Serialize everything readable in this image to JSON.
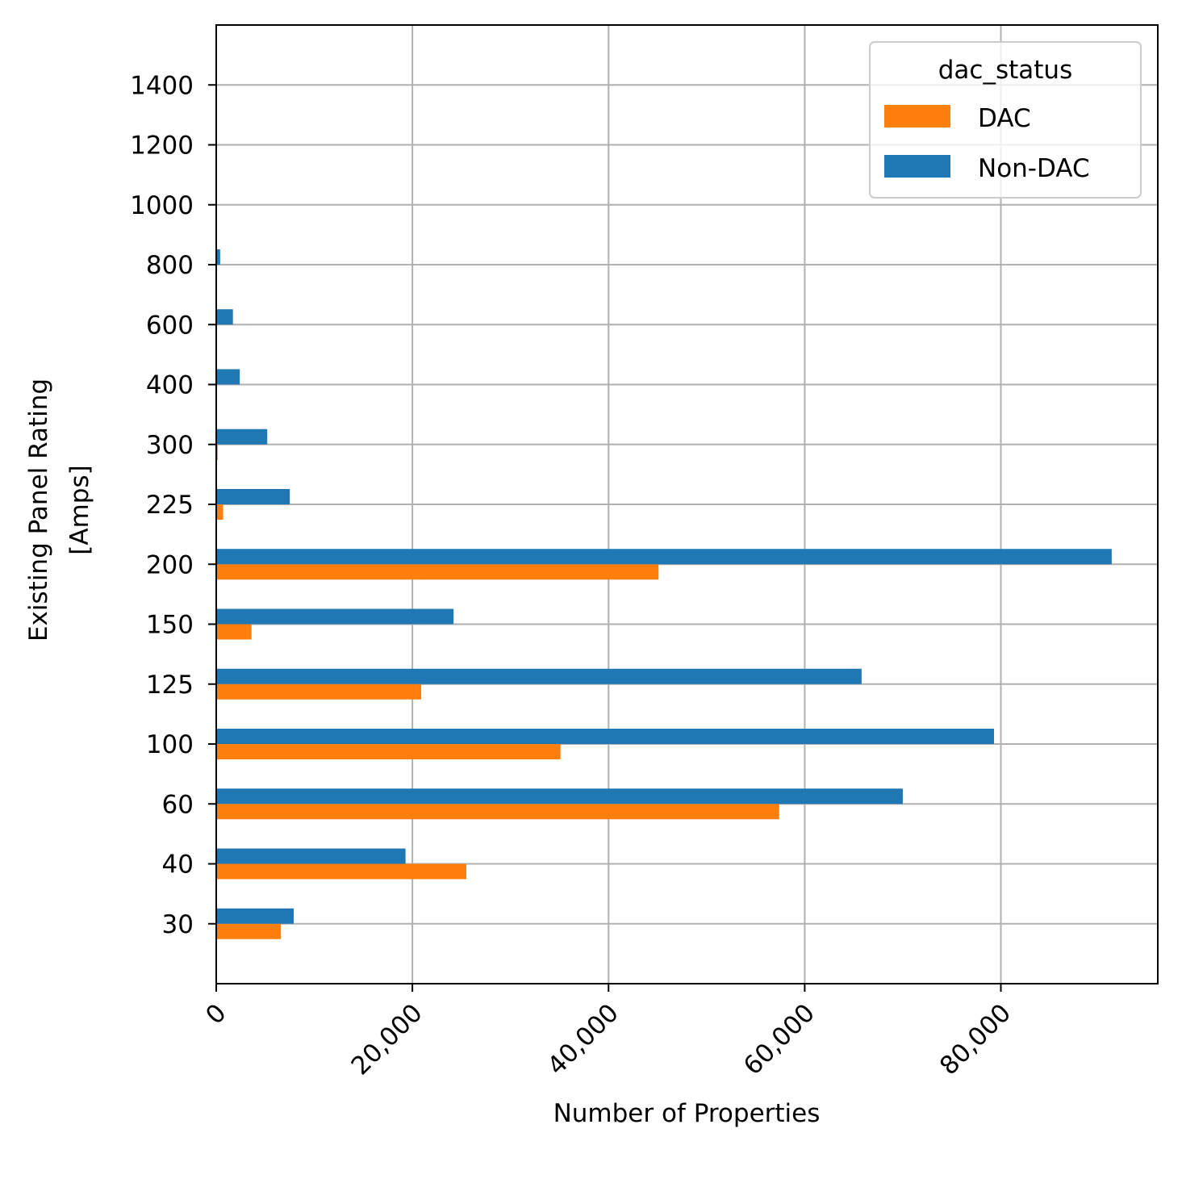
{
  "chart_data": {
    "type": "bar",
    "orientation": "horizontal",
    "title": "",
    "xlabel": "Number of Properties",
    "ylabel_lines": [
      "Existing Panel Rating",
      "[Amps]"
    ],
    "categories": [
      "30",
      "40",
      "60",
      "100",
      "125",
      "150",
      "200",
      "225",
      "300",
      "400",
      "600",
      "800",
      "1000",
      "1200",
      "1400"
    ],
    "category_values": [
      30,
      40,
      60,
      100,
      125,
      150,
      200,
      225,
      300,
      400,
      600,
      800,
      1000,
      1200,
      1400
    ],
    "series": [
      {
        "name": "DAC",
        "color": "#ff7f0e",
        "values": [
          6600,
          25500,
          57400,
          35100,
          20900,
          3600,
          45100,
          700,
          150,
          0,
          0,
          0,
          0,
          0,
          0
        ]
      },
      {
        "name": "Non-DAC",
        "color": "#1f77b4",
        "values": [
          7900,
          19300,
          70000,
          79300,
          65800,
          24200,
          91300,
          7500,
          5200,
          2400,
          1700,
          400,
          0,
          0,
          0
        ]
      }
    ],
    "xlim": [
      0,
      96000
    ],
    "xticks": [
      0,
      20000,
      40000,
      60000,
      80000
    ],
    "xtick_labels": [
      "0",
      "20,000",
      "40,000",
      "60,000",
      "80,000"
    ],
    "xtick_rotation": 45,
    "grid": true,
    "legend": {
      "title": "dac_status",
      "placement": "top-right",
      "entries": [
        "DAC",
        "Non-DAC"
      ]
    }
  }
}
